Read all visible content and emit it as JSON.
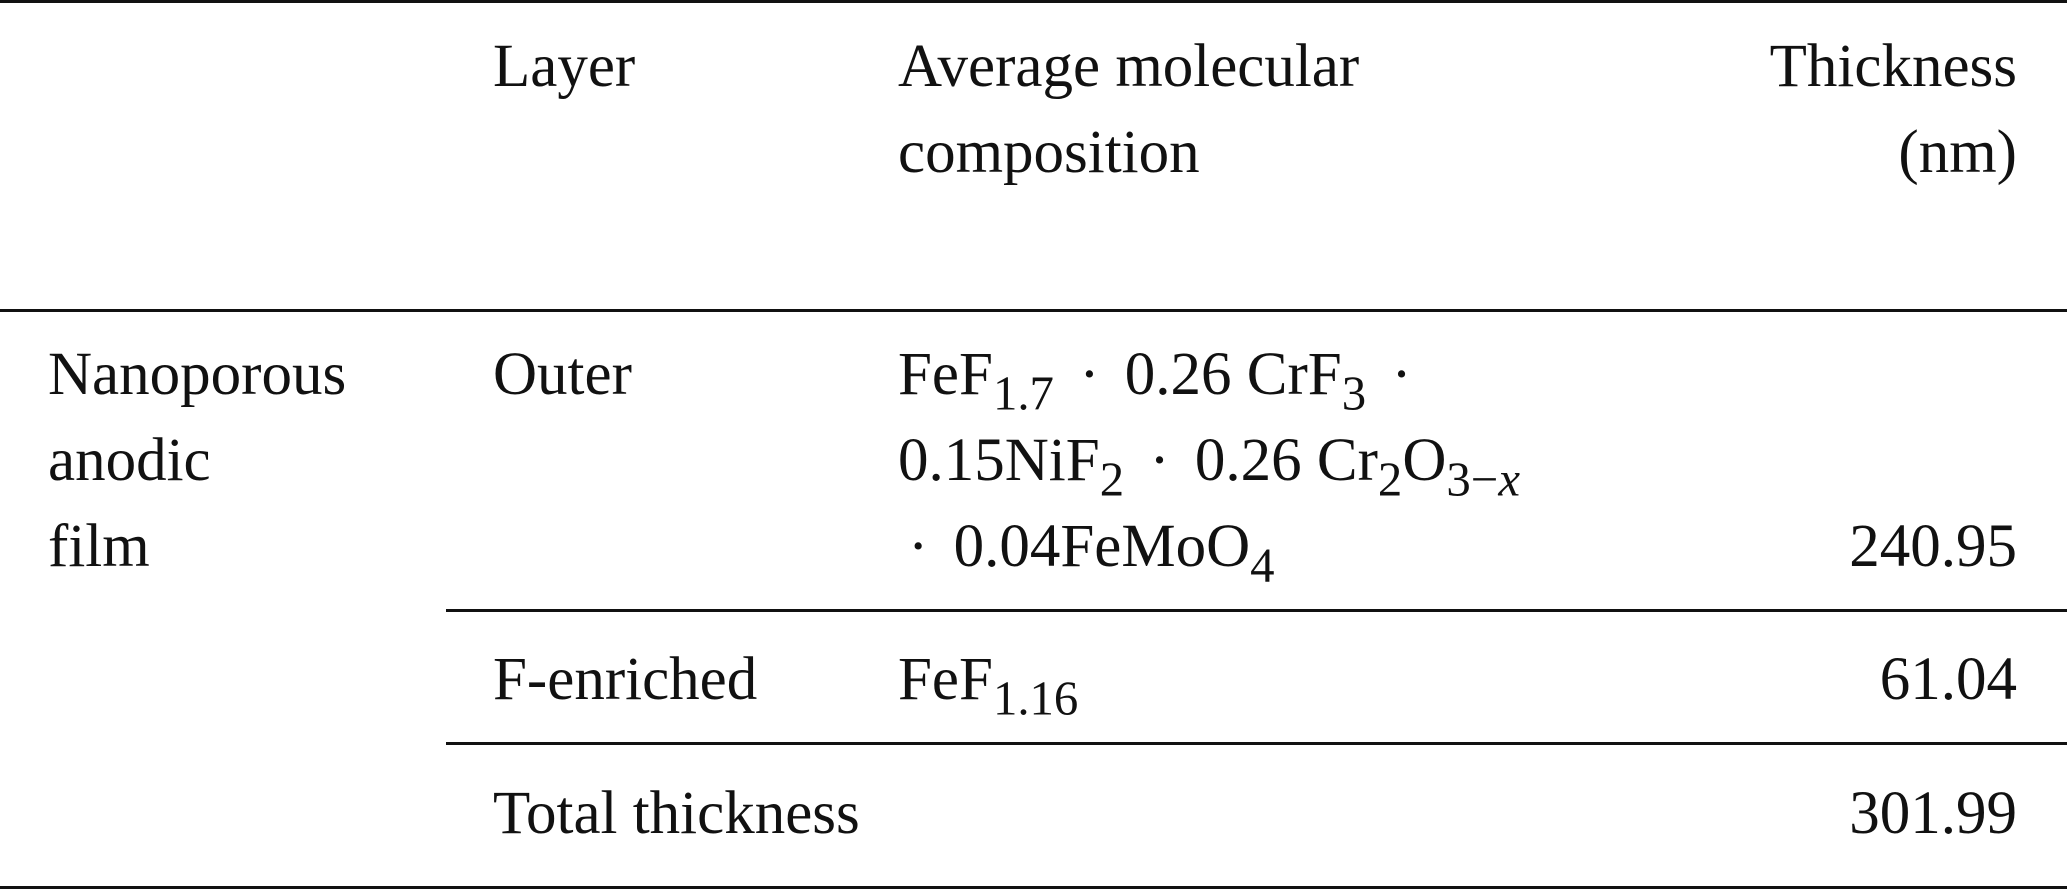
{
  "table": {
    "headers": {
      "layer": "Layer",
      "composition_line1": "Average molecular",
      "composition_line2": "composition",
      "thickness_line1": "Thickness",
      "thickness_line2": "(nm)"
    },
    "group_label_lines": [
      "Nanoporous",
      "anodic",
      "film"
    ],
    "rows": [
      {
        "layer": "Outer",
        "composition_lines": [
          "FeF1.7 · 0.26 CrF3 ·",
          "0.15NiF2 · 0.26 Cr2O3−x",
          "· 0.04FeMoO4"
        ],
        "thickness": "240.95"
      },
      {
        "layer": "F-enriched",
        "composition_lines": [
          "FeF1.16"
        ],
        "thickness": "61.04"
      }
    ],
    "total": {
      "label": "Total thickness",
      "thickness": "301.99"
    }
  }
}
